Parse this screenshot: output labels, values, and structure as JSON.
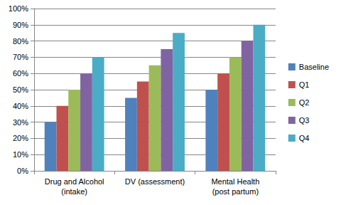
{
  "chart_data": {
    "type": "bar",
    "categories": [
      "Drug and Alcohol\n(intake)",
      "DV (assessment)",
      "Mental Health\n(post partum)"
    ],
    "series": [
      {
        "name": "Baseline",
        "color": "#4f81bd",
        "values": [
          30,
          45,
          50
        ]
      },
      {
        "name": "Q1",
        "color": "#c0504d",
        "values": [
          40,
          55,
          60
        ]
      },
      {
        "name": "Q2",
        "color": "#9bbb59",
        "values": [
          50,
          65,
          70
        ]
      },
      {
        "name": "Q3",
        "color": "#8064a2",
        "values": [
          60,
          75,
          80
        ]
      },
      {
        "name": "Q4",
        "color": "#4bacc6",
        "values": [
          70,
          85,
          90
        ]
      }
    ],
    "ylim": [
      0,
      100
    ],
    "yticks": [
      {
        "value": 0,
        "label": "0%"
      },
      {
        "value": 10,
        "label": "10%"
      },
      {
        "value": 20,
        "label": "20%"
      },
      {
        "value": 30,
        "label": "30%"
      },
      {
        "value": 40,
        "label": "40%"
      },
      {
        "value": 50,
        "label": "50%"
      },
      {
        "value": 60,
        "label": "60%"
      },
      {
        "value": 70,
        "label": "70%"
      },
      {
        "value": 80,
        "label": "80%"
      },
      {
        "value": 90,
        "label": "90%"
      },
      {
        "value": 100,
        "label": "100%"
      }
    ],
    "grid": true,
    "legend": "right"
  }
}
